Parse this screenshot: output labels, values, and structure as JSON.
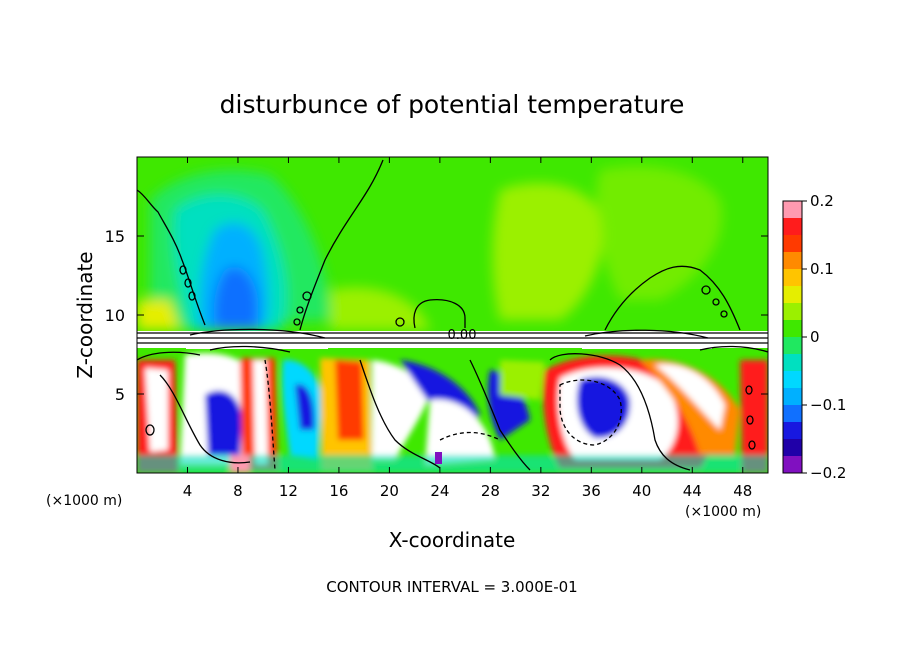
{
  "chart_data": {
    "type": "heatmap",
    "title": "disturbunce of potential temperature",
    "xlabel": "X-coordinate",
    "ylabel": "Z-coordinate",
    "x_unit_left": "(×1000 m)",
    "x_unit_right": "(×1000 m)",
    "xlim": [
      0,
      50
    ],
    "ylim": [
      0,
      20
    ],
    "xticks": [
      4,
      8,
      12,
      16,
      20,
      24,
      28,
      32,
      36,
      40,
      44,
      48
    ],
    "yticks": [
      5,
      10,
      15
    ],
    "colorbar": {
      "ticks": [
        "0.2",
        "0.1",
        "0",
        "−0.1",
        "−0.2"
      ],
      "range": [
        -0.2,
        0.2
      ],
      "colors": [
        "#ff9ab0",
        "#ff1c1c",
        "#ff3a00",
        "#ff8a00",
        "#ffc400",
        "#e5ee00",
        "#9bf000",
        "#3fe800",
        "#20e860",
        "#00e0c0",
        "#00d8ff",
        "#00b0ff",
        "#1070ff",
        "#1818e0",
        "#2000a8",
        "#8010c0"
      ]
    },
    "contour_label": "0.00",
    "footer": "CONTOUR INTERVAL = 3.000E-01"
  }
}
